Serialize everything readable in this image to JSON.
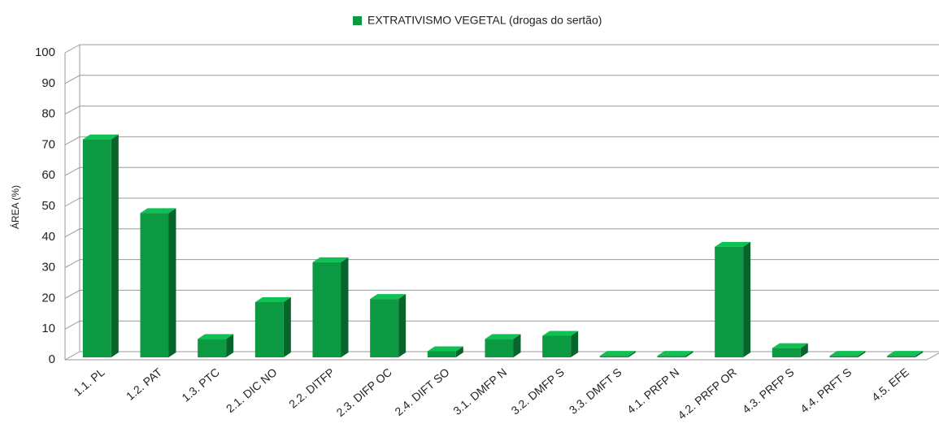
{
  "chart_data": {
    "type": "bar",
    "title": null,
    "legend_label": "EXTRATIVISMO VEGETAL (drogas do sertão)",
    "y_label": "ÁREA (%)",
    "categories": [
      "1.1. PL",
      "1.2. PAT",
      "1.3. PTC",
      "2.1. DIC NO",
      "2.2. DITFP",
      "2.3. DIFP OC",
      "2.4. DIFT SO",
      "3.1. DMFP N",
      "3.2. DMFP S",
      "3.3. DMFT S",
      "4.1. PRFP N",
      "4.2. PRFP OR",
      "4.3. PRFP S",
      "4.4. PRFT S",
      "4.5. EFE"
    ],
    "values": [
      71,
      47,
      6,
      18,
      31,
      19,
      2,
      6,
      7,
      0.5,
      0.5,
      36,
      3,
      0.5,
      0.5
    ],
    "color": "#0b9a42",
    "ylim": [
      0,
      100
    ],
    "yticks": [
      0,
      10,
      20,
      30,
      40,
      50,
      60,
      70,
      80,
      90,
      100
    ],
    "grid": true
  }
}
